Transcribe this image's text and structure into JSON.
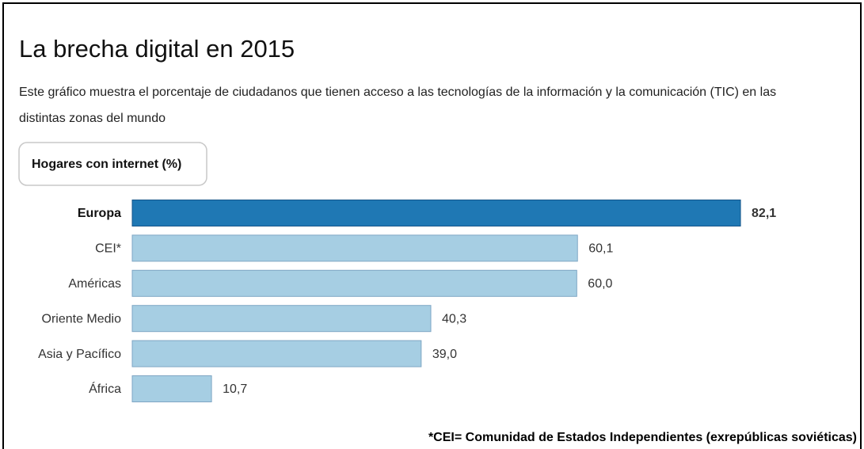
{
  "chart_data": {
    "type": "bar",
    "orientation": "horizontal",
    "title": "La brecha digital en 2015",
    "subtitle": [
      "Este gráfico muestra el porcentaje de ciudadanos que tienen acceso a las tecnologías de la información y la comunicación (TIC) en las",
      "distintas zonas del mundo"
    ],
    "tab": "Hogares con internet (%)",
    "categories": [
      "Europa",
      "CEI*",
      "Américas",
      "Oriente Medio",
      "Asia y Pacífico",
      "África"
    ],
    "values": [
      82.1,
      60.1,
      60.0,
      40.3,
      39.0,
      10.7
    ],
    "value_labels": [
      "82,1",
      "60,1",
      "60,0",
      "40,3",
      "39,0",
      "10,7"
    ],
    "colors": [
      "#1f78b4",
      "#a6cee3",
      "#a6cee3",
      "#a6cee3",
      "#a6cee3",
      "#a6cee3"
    ],
    "edge_colors": [
      "#16558a",
      "#7fa6c4",
      "#7fa6c4",
      "#7fa6c4",
      "#7fa6c4",
      "#7fa6c4"
    ],
    "highlight": "Europa",
    "footnote": "*CEI= Comunidad de Estados Independientes (exrepúblicas soviéticas)"
  }
}
